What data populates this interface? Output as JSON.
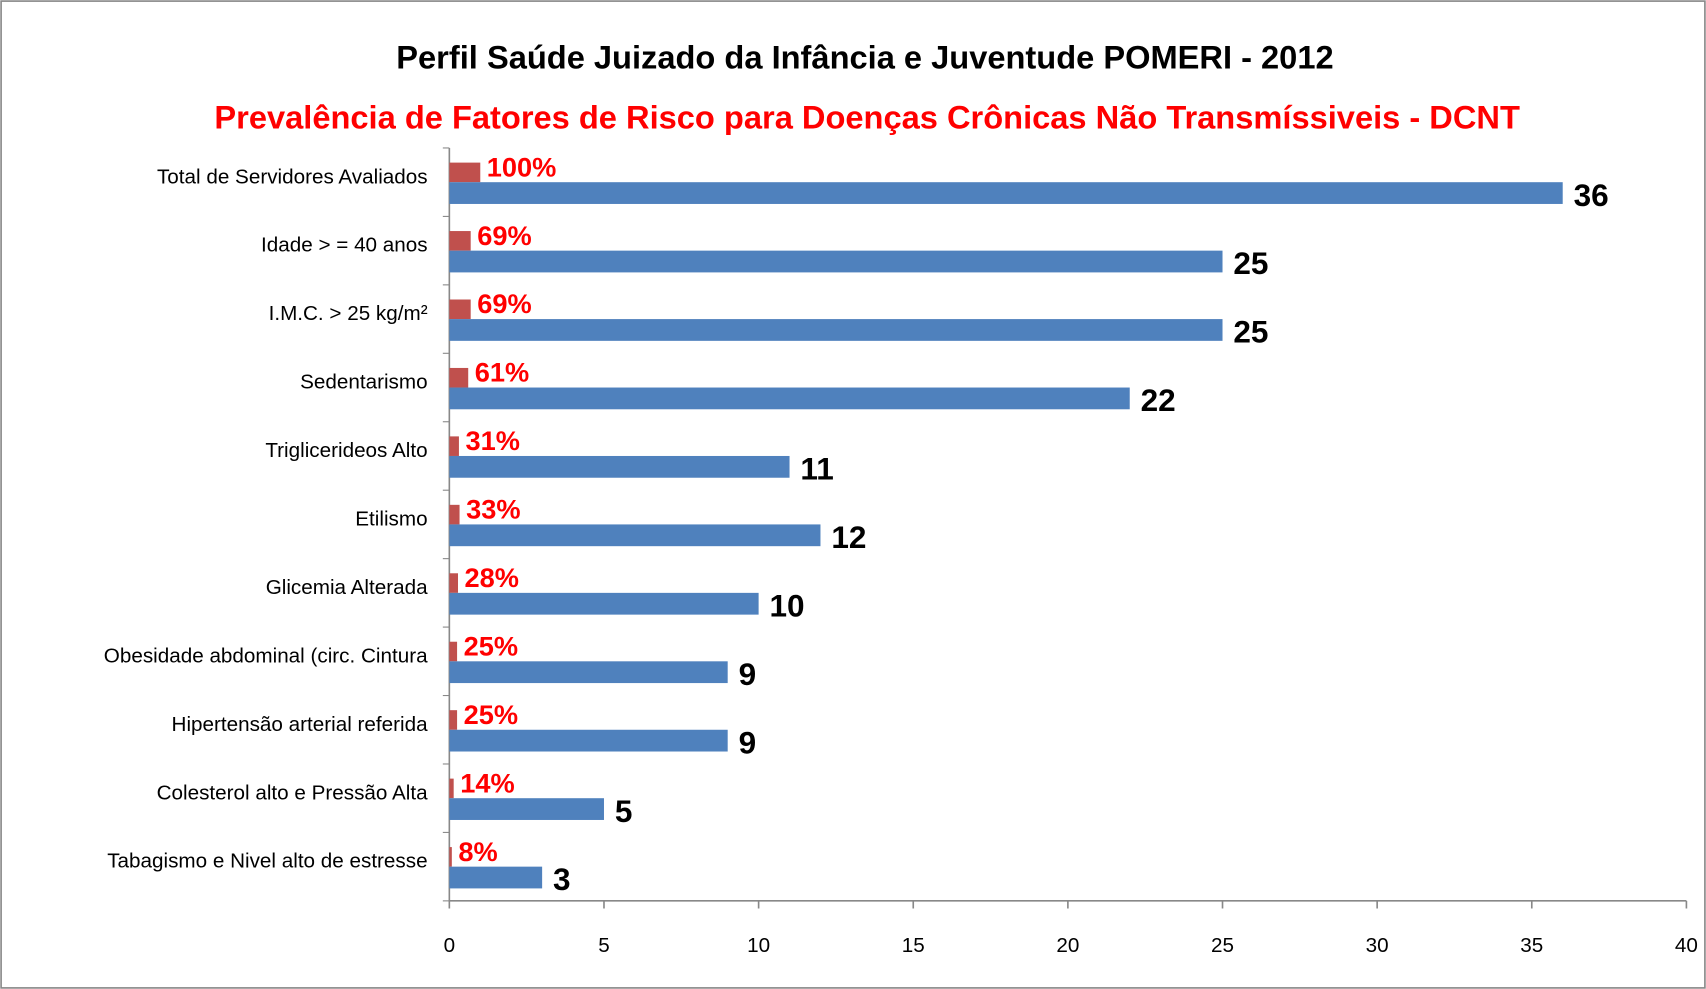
{
  "chart_data": {
    "type": "bar",
    "orientation": "horizontal",
    "title": "Perfil Saúde Juizado da Infância e Juventude  POMERI - 2012",
    "subtitle": "Prevalência de Fatores de Risco para Doenças Crônicas Não Transmíssiveis - DCNT",
    "categories": [
      "Total de Servidores Avaliados",
      "Idade > = 40 anos",
      "I.M.C. > 25 kg/m²",
      "Sedentarismo",
      "Triglicerideos Alto",
      "Etilismo",
      "Glicemia Alterada",
      "Obesidade abdominal (circ. Cintura",
      "Hipertensão arterial referida",
      "Colesterol alto e Pressão Alta",
      "Tabagismo e Nivel alto de estresse"
    ],
    "series": [
      {
        "color": "#c0504d",
        "values": [
          1,
          0.69,
          0.69,
          0.61,
          0.31,
          0.33,
          0.28,
          0.25,
          0.25,
          0.14,
          0.08
        ],
        "value_labels": [
          "100%",
          "69%",
          "69%",
          "61%",
          "31%",
          "33%",
          "28%",
          "25%",
          "25%",
          "14%",
          "8%"
        ]
      },
      {
        "color": "#4f81bd",
        "values": [
          36,
          25,
          25,
          22,
          11,
          12,
          10,
          9,
          9,
          5,
          3
        ]
      }
    ],
    "xlim": [
      0,
      40
    ],
    "xticks": [
      0,
      5,
      10,
      15,
      20,
      25,
      30,
      35,
      40
    ],
    "grid": false
  }
}
